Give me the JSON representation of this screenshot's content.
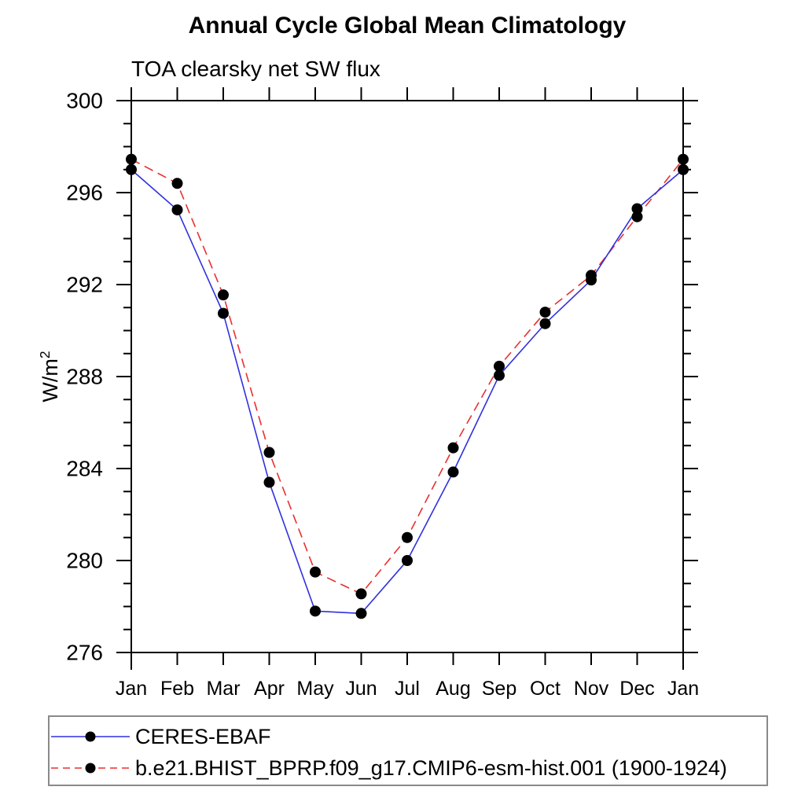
{
  "chart_data": {
    "type": "line",
    "title": "Annual Cycle Global Mean Climatology",
    "subtitle": "TOA clearsky net SW flux",
    "ylabel": {
      "base": "W/m",
      "superscript": "2"
    },
    "x_categories": [
      "Jan",
      "Feb",
      "Mar",
      "Apr",
      "May",
      "Jun",
      "Jul",
      "Aug",
      "Sep",
      "Oct",
      "Nov",
      "Dec",
      "Jan"
    ],
    "ylim": [
      276,
      300
    ],
    "yticks_labeled": [
      276,
      280,
      284,
      288,
      292,
      296,
      300
    ],
    "ytick_minor_step": 1,
    "grid": false,
    "legend_position": "bottom",
    "axis_color": "#000000",
    "series": [
      {
        "name": "CERES-EBAF",
        "color": "#3030e0",
        "style": "solid",
        "marker": "circle",
        "marker_color": "#000000",
        "values": [
          297.0,
          295.25,
          290.75,
          283.4,
          277.8,
          277.7,
          280.0,
          283.85,
          288.05,
          290.3,
          292.2,
          295.3,
          297.0
        ]
      },
      {
        "name": "b.e21.BHIST_BPRP.f09_g17.CMIP6-esm-hist.001 (1900-1924)",
        "color": "#e83030",
        "style": "dashed",
        "marker": "circle",
        "marker_color": "#000000",
        "values": [
          297.45,
          296.4,
          291.55,
          284.7,
          279.5,
          278.55,
          281.0,
          284.9,
          288.45,
          290.8,
          292.4,
          294.95,
          297.45
        ]
      }
    ]
  }
}
